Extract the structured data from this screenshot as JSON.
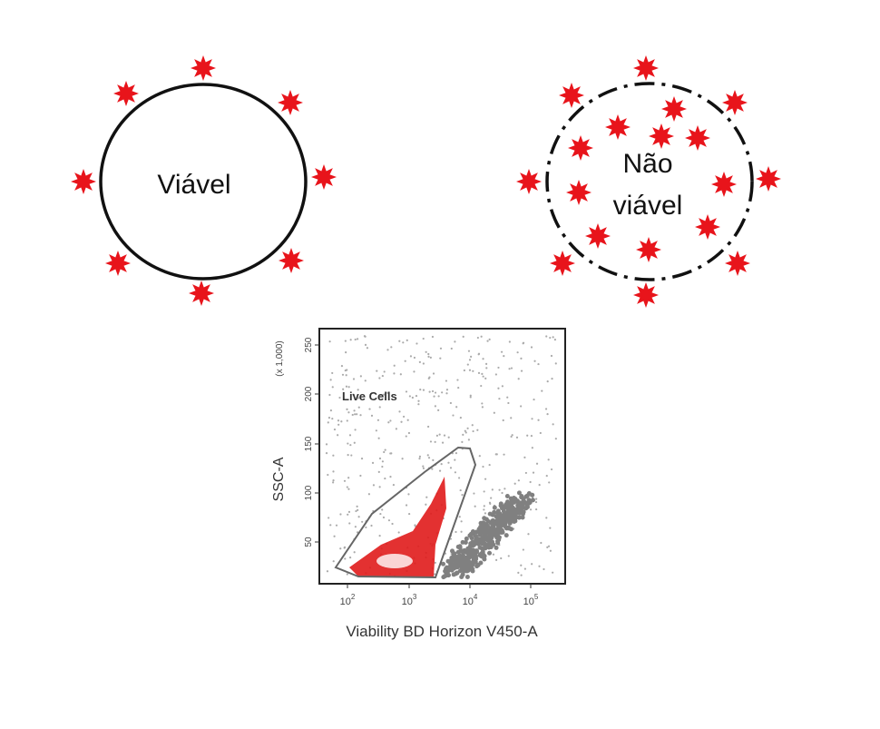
{
  "viable_cell": {
    "label": "Viável"
  },
  "nonviable_cell": {
    "label_line1": "Não",
    "label_line2": "viável"
  },
  "plot": {
    "gate_label": "Live Cells",
    "y_axis_label": "SSC-A",
    "y_axis_multiplier": "(x 1,000)",
    "x_axis_label": "Viability BD Horizon V450-A",
    "y_ticks": [
      "50",
      "100",
      "150",
      "200",
      "250"
    ],
    "x_ticks": [
      {
        "base": "10",
        "exp": "2"
      },
      {
        "base": "10",
        "exp": "3"
      },
      {
        "base": "10",
        "exp": "4"
      },
      {
        "base": "10",
        "exp": "5"
      }
    ]
  },
  "colors": {
    "dye": "#e8141b",
    "live": "#e01b1b",
    "dead": "#808080",
    "outline": "#111111"
  }
}
